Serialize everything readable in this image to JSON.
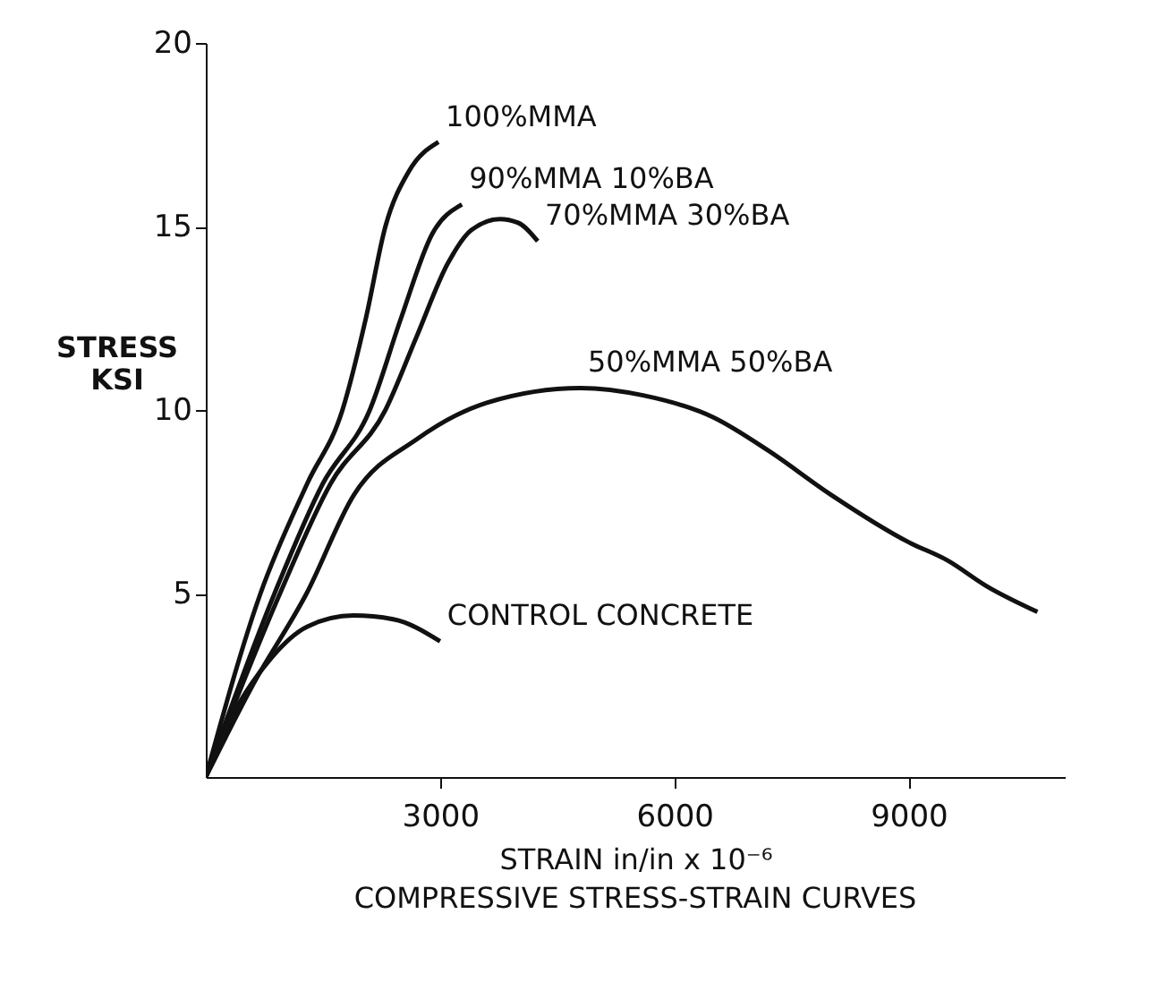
{
  "chart_data": {
    "type": "line",
    "title": "COMPRESSIVE STRESS-STRAIN CURVES",
    "xlabel": "STRAIN in/in x 10⁻⁶",
    "ylabel": "STRESS\nKSI",
    "xlim": [
      0,
      11000
    ],
    "xticks": [
      3000,
      6000,
      9000
    ],
    "ylim": [
      0,
      20
    ],
    "yticks": [
      5,
      10,
      15,
      20
    ],
    "grid": false,
    "line_style": "solid",
    "series": [
      {
        "name": "100%MMA",
        "color": "#111111",
        "x": [
          0,
          700,
          1300,
          1750,
          2050,
          2300,
          2600,
          2980
        ],
        "values": [
          0,
          5,
          8,
          10,
          12.5,
          15,
          16.5,
          17.3
        ]
      },
      {
        "name": "90%MMA  10%BA",
        "color": "#111111",
        "x": [
          0,
          880,
          1500,
          2100,
          2500,
          2900,
          3280
        ],
        "values": [
          0,
          5,
          8,
          10,
          12.5,
          14.8,
          15.6
        ]
      },
      {
        "name": "70%MMA  30%BA",
        "color": "#111111",
        "x": [
          0,
          950,
          1600,
          2300,
          2700,
          3100,
          3400,
          3765,
          4000,
          4250
        ],
        "values": [
          0,
          5,
          8,
          10,
          12,
          14,
          14.9,
          15.2,
          15.1,
          14.6
        ]
      },
      {
        "name": "50%MMA  50%BA",
        "color": "#111111",
        "x": [
          0,
          600,
          1290,
          1900,
          2700,
          3600,
          4800,
          5600,
          6500,
          7200,
          8000,
          9000,
          9500,
          10000,
          10650
        ],
        "values": [
          0,
          2.5,
          5,
          7.7,
          9.2,
          10.2,
          10.6,
          10.4,
          9.8,
          8.9,
          7.7,
          6.4,
          5.9,
          5.2,
          4.5
        ]
      },
      {
        "name": "CONTROL CONCRETE",
        "color": "#111111",
        "x": [
          0,
          300,
          840,
          1300,
          1890,
          2400,
          3000
        ],
        "values": [
          0,
          1.5,
          3.25,
          4.1,
          4.4,
          4.3,
          3.7
        ]
      }
    ]
  }
}
